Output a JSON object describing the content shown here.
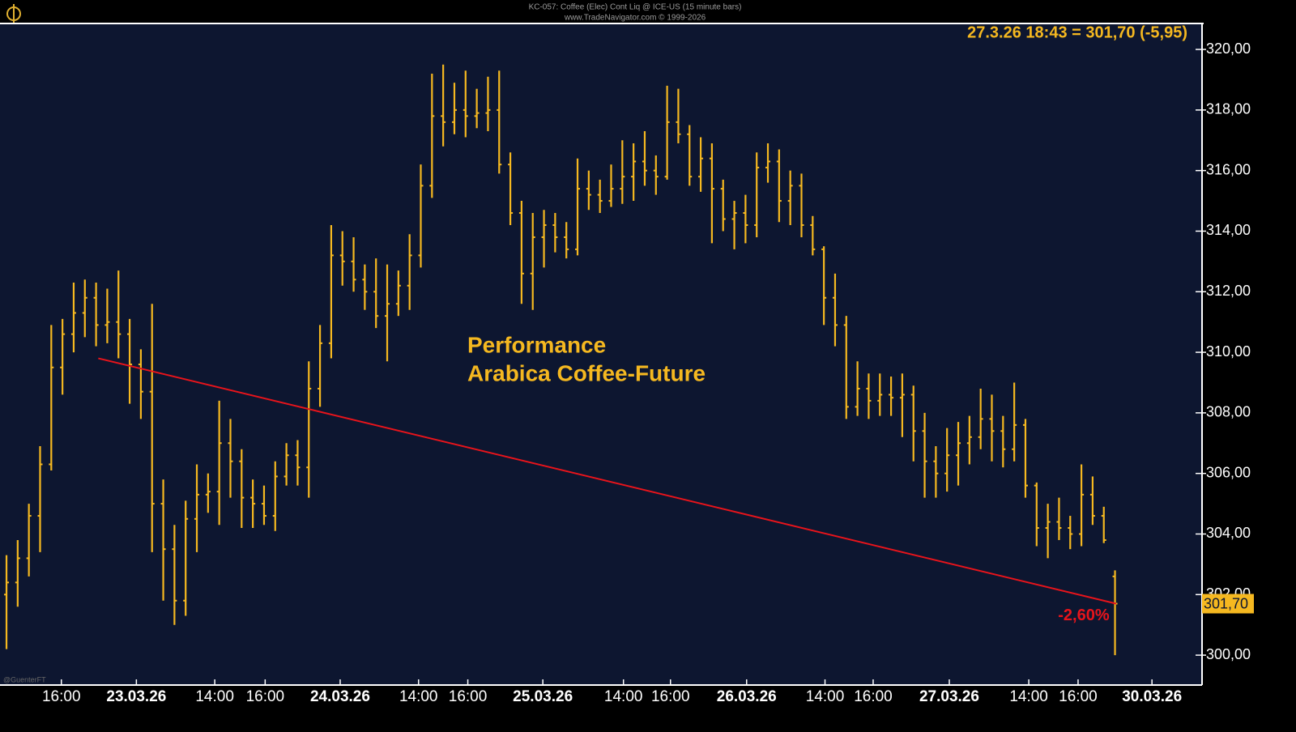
{
  "chart_data": {
    "type": "ohlc",
    "title": "KC-057: Coffee (Elec) Cont Liq @ ICE-US  (15 minute bars)",
    "subtitle": "www.TradeNavigator.com © 1999-2026",
    "header": "27.3.26 18:43 = 301,70 (-5,95)",
    "annotation": [
      "Performance",
      "Arabica Coffee-Future"
    ],
    "credit": "@GuenterFT",
    "last_price": {
      "value": 301.7,
      "label": "301,70"
    },
    "trendline": {
      "x": [
        8.2,
        99.1
      ],
      "y": [
        309.8,
        301.7
      ],
      "color": "#e8141b",
      "label": "-2,60%"
    },
    "xlim": [
      -0.58,
      106.7
    ],
    "xticks": [
      {
        "value": 4.9,
        "label": "16:00"
      },
      {
        "value": 11.6,
        "label": "23.03.26"
      },
      {
        "value": 18.6,
        "label": "14:00"
      },
      {
        "value": 23.1,
        "label": "16:00"
      },
      {
        "value": 29.8,
        "label": "24.03.26"
      },
      {
        "value": 36.8,
        "label": "14:00"
      },
      {
        "value": 41.2,
        "label": "16:00"
      },
      {
        "value": 47.9,
        "label": "25.03.26"
      },
      {
        "value": 55.1,
        "label": "14:00"
      },
      {
        "value": 59.3,
        "label": "16:00"
      },
      {
        "value": 66.1,
        "label": "26.03.26"
      },
      {
        "value": 73.1,
        "label": "14:00"
      },
      {
        "value": 77.4,
        "label": "16:00"
      },
      {
        "value": 84.2,
        "label": "27.03.26"
      },
      {
        "value": 91.3,
        "label": "14:00"
      },
      {
        "value": 95.7,
        "label": "16:00"
      },
      {
        "value": 102.3,
        "label": "30.03.26"
      }
    ],
    "ylim": [
      299.04,
      320.83
    ],
    "yticks": [
      {
        "value": 300,
        "label": "300,00"
      },
      {
        "value": 302,
        "label": "302,00"
      },
      {
        "value": 304,
        "label": "304,00"
      },
      {
        "value": 306,
        "label": "306,00"
      },
      {
        "value": 308,
        "label": "308,00"
      },
      {
        "value": 310,
        "label": "310,00"
      },
      {
        "value": 312,
        "label": "312,00"
      },
      {
        "value": 314,
        "label": "314,00"
      },
      {
        "value": 316,
        "label": "316,00"
      },
      {
        "value": 318,
        "label": "318,00"
      },
      {
        "value": 320,
        "label": "320,00"
      }
    ],
    "series": [
      {
        "color": "#f5b820",
        "open": [
          302.0,
          302.4,
          303.2,
          304.6,
          306.3,
          309.5,
          310.6,
          311.3,
          311.8,
          310.9,
          311.0,
          310.6,
          309.6,
          308.7,
          305.0,
          303.5,
          301.8,
          304.5,
          305.3,
          305.4,
          307.0,
          306.4,
          305.2,
          305.0,
          304.6,
          305.9,
          306.6,
          306.2,
          308.8,
          310.3,
          313.2,
          313.0,
          312.4,
          312.0,
          311.2,
          311.6,
          312.2,
          313.2,
          315.5,
          317.8,
          317.6,
          318.0,
          317.8,
          317.9,
          318.0,
          316.2,
          314.6,
          312.6,
          313.8,
          314.2,
          313.8,
          313.4,
          315.4,
          315.2,
          315.0,
          315.4,
          315.8,
          316.3,
          316.0,
          315.8,
          317.6,
          317.2,
          315.8,
          316.4,
          315.4,
          314.4,
          314.6,
          314.2,
          316.1,
          316.3,
          315.0,
          315.5,
          314.2,
          313.4,
          311.8,
          310.9,
          308.2,
          308.8,
          308.4,
          308.6,
          308.5,
          308.6,
          307.4,
          306.4,
          306.0,
          306.6,
          307.0,
          307.2,
          307.8,
          307.4,
          306.8,
          307.6,
          305.6,
          304.2,
          304.4,
          304.2,
          304.0,
          305.3,
          304.6,
          302.6
        ],
        "high": [
          303.3,
          303.8,
          305.0,
          306.9,
          310.9,
          311.1,
          312.3,
          312.4,
          312.3,
          312.1,
          312.7,
          311.1,
          310.1,
          311.6,
          305.8,
          304.3,
          305.1,
          306.3,
          306.0,
          308.4,
          307.8,
          306.8,
          305.8,
          305.6,
          306.4,
          307.0,
          307.1,
          309.7,
          310.9,
          314.2,
          314.0,
          313.8,
          312.9,
          313.1,
          312.9,
          312.7,
          313.9,
          316.2,
          319.2,
          319.5,
          318.9,
          319.3,
          318.7,
          319.1,
          319.3,
          316.6,
          315.0,
          314.6,
          314.7,
          314.6,
          314.3,
          316.4,
          316.0,
          315.7,
          316.2,
          317.0,
          316.9,
          317.3,
          316.5,
          318.8,
          318.7,
          317.5,
          317.1,
          316.9,
          315.7,
          315.0,
          315.2,
          316.6,
          316.9,
          316.7,
          316.0,
          315.9,
          314.5,
          313.5,
          312.6,
          311.2,
          309.7,
          309.3,
          309.3,
          309.2,
          309.3,
          308.9,
          308.0,
          306.9,
          307.5,
          307.7,
          307.9,
          308.8,
          308.6,
          307.9,
          309.0,
          307.8,
          305.7,
          305.0,
          305.2,
          304.6,
          306.3,
          305.9,
          304.9,
          302.8
        ],
        "low": [
          300.2,
          301.6,
          302.6,
          303.4,
          306.1,
          308.6,
          310.0,
          310.5,
          310.2,
          310.3,
          309.8,
          308.3,
          307.8,
          303.4,
          301.8,
          301.0,
          301.3,
          303.4,
          304.7,
          304.3,
          305.2,
          304.2,
          304.2,
          304.3,
          304.1,
          305.6,
          305.6,
          305.2,
          308.2,
          309.8,
          312.2,
          312.0,
          311.4,
          310.8,
          309.7,
          311.2,
          311.4,
          312.8,
          315.1,
          316.8,
          317.2,
          317.1,
          317.4,
          317.3,
          315.9,
          314.2,
          311.6,
          311.4,
          312.8,
          313.3,
          313.1,
          313.2,
          314.7,
          314.6,
          314.8,
          314.9,
          315.0,
          315.5,
          315.2,
          315.7,
          316.9,
          315.5,
          315.3,
          313.6,
          314.0,
          313.4,
          313.6,
          313.8,
          315.6,
          314.3,
          314.2,
          313.8,
          313.2,
          310.9,
          310.2,
          307.8,
          307.9,
          307.8,
          307.9,
          307.9,
          307.2,
          306.4,
          305.2,
          305.2,
          305.4,
          305.6,
          306.3,
          306.8,
          306.4,
          306.2,
          306.4,
          305.2,
          303.6,
          303.2,
          303.8,
          303.5,
          303.6,
          304.3,
          303.7,
          300.0
        ],
        "close": [
          302.4,
          303.2,
          304.6,
          306.3,
          309.5,
          310.6,
          311.3,
          311.8,
          310.9,
          311.0,
          310.6,
          309.6,
          308.7,
          305.0,
          303.5,
          301.8,
          304.5,
          305.3,
          305.4,
          307.0,
          306.4,
          305.2,
          305.0,
          304.6,
          305.9,
          306.6,
          306.2,
          308.8,
          310.3,
          313.2,
          313.0,
          312.4,
          312.0,
          311.2,
          311.6,
          312.2,
          313.2,
          315.5,
          317.8,
          317.6,
          318.0,
          317.8,
          317.9,
          318.0,
          316.2,
          314.6,
          312.6,
          313.8,
          314.2,
          313.8,
          313.4,
          315.4,
          315.2,
          315.0,
          315.4,
          315.8,
          316.3,
          316.0,
          315.8,
          317.6,
          317.2,
          315.8,
          316.4,
          315.4,
          314.4,
          314.6,
          314.2,
          316.1,
          316.3,
          315.0,
          315.5,
          314.2,
          313.4,
          311.8,
          310.9,
          308.2,
          308.8,
          308.4,
          308.6,
          308.5,
          308.6,
          307.4,
          306.4,
          306.0,
          306.6,
          307.0,
          307.2,
          307.8,
          307.4,
          306.8,
          307.6,
          305.6,
          304.2,
          304.4,
          304.2,
          304.0,
          305.3,
          304.6,
          303.8,
          301.7
        ]
      }
    ]
  }
}
